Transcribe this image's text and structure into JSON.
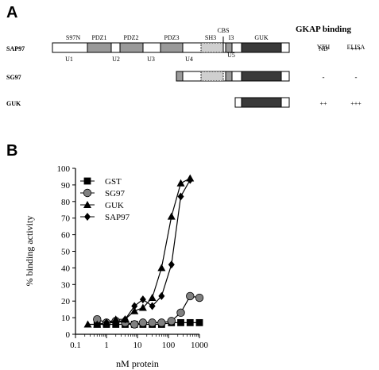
{
  "panel_a": {
    "label": "A",
    "header": {
      "title": "GKAP binding",
      "col1": "YTH",
      "col2": "ELISA"
    },
    "constructs": [
      {
        "name": "SAP97",
        "yth": "ND",
        "elisa": "+++"
      },
      {
        "name": "SG97",
        "yth": "-",
        "elisa": "-"
      },
      {
        "name": "GUK",
        "yth": "++",
        "elisa": "+++"
      }
    ],
    "domains": {
      "s97n": "S97N",
      "pdz1": "PDZ1",
      "pdz2": "PDZ2",
      "pdz3": "PDZ3",
      "sh3": "SH3",
      "cbs": "CBS",
      "i3": "I3",
      "guk": "GUK"
    },
    "linkers": {
      "u1": "U1",
      "u2": "U2",
      "u3": "U3",
      "u4": "U4",
      "u5": "U5"
    },
    "colors": {
      "pdz": "#9a9a9a",
      "guk": "#3a3a3a",
      "sh3": "#cfcfcf",
      "box": "#ffffff",
      "outline": "#000000"
    }
  },
  "panel_b": {
    "label": "B"
  },
  "chart_data": {
    "type": "scatter",
    "xlabel": "nM protein",
    "ylabel": "% binding activity",
    "xscale": "log",
    "xlim": [
      0.1,
      1000
    ],
    "ylim": [
      0,
      100
    ],
    "xticks": [
      0.1,
      1,
      10,
      100,
      1000
    ],
    "xtick_labels": [
      "0.1",
      "1",
      "10",
      "100",
      "1000"
    ],
    "yticks": [
      0,
      10,
      20,
      30,
      40,
      50,
      60,
      70,
      80,
      90,
      100
    ],
    "grid": false,
    "legend_position": "top-left",
    "series": [
      {
        "name": "GST",
        "marker": "square",
        "color": "#000000",
        "x": [
          0.5,
          1,
          2,
          4,
          8,
          15,
          30,
          60,
          125,
          250,
          500,
          1000
        ],
        "y": [
          6,
          6,
          6,
          6,
          6,
          6,
          6,
          6,
          7,
          7,
          7,
          7
        ]
      },
      {
        "name": "SG97",
        "marker": "circle",
        "color": "#808080",
        "x": [
          0.5,
          1,
          2,
          4,
          8,
          15,
          30,
          60,
          125,
          250,
          500,
          1000
        ],
        "y": [
          9,
          7,
          8,
          7,
          6,
          7,
          7,
          7,
          8,
          13,
          23,
          22
        ]
      },
      {
        "name": "GUK",
        "marker": "triangle",
        "color": "#000000",
        "x": [
          0.25,
          0.5,
          1,
          2,
          4,
          8,
          15,
          30,
          60,
          125,
          250,
          500
        ],
        "y": [
          6,
          6,
          7,
          9,
          9,
          14,
          16,
          22,
          40,
          71,
          91,
          94
        ]
      },
      {
        "name": "SAP97",
        "marker": "diamond",
        "color": "#000000",
        "x": [
          1,
          2,
          4,
          8,
          15,
          30,
          60,
          125,
          250,
          500
        ],
        "y": [
          7,
          7,
          9,
          17,
          21,
          17,
          23,
          42,
          83,
          93
        ]
      }
    ]
  }
}
